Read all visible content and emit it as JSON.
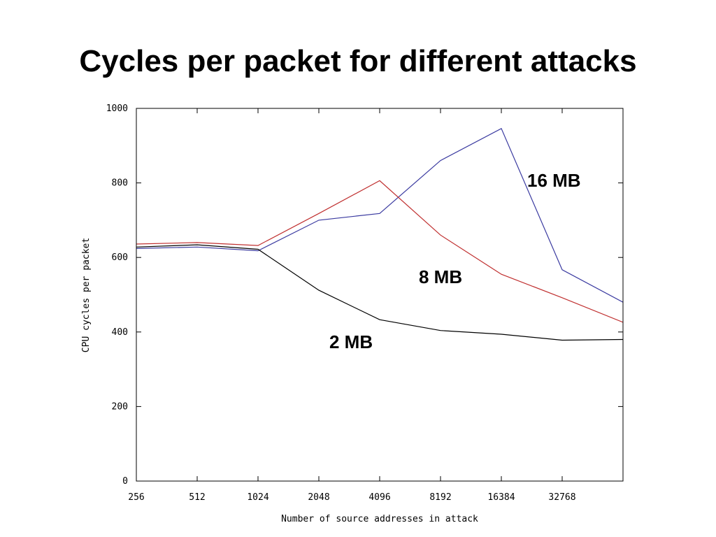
{
  "title": "Cycles per packet for different attacks",
  "chart_data": {
    "type": "line",
    "xlabel": "Number of source addresses in attack",
    "ylabel": "CPU cycles per packet",
    "categories": [
      "256",
      "512",
      "1024",
      "2048",
      "4096",
      "8192",
      "16384",
      "32768",
      ""
    ],
    "ylim": [
      0,
      1000
    ],
    "yticks": [
      "0",
      "200",
      "400",
      "600",
      "800",
      "1000"
    ],
    "grid": false,
    "series": [
      {
        "name": "16 MB",
        "color": "#3a3aa0",
        "values": [
          624,
          628,
          618,
          700,
          718,
          860,
          946,
          567,
          480
        ]
      },
      {
        "name": "8 MB",
        "color": "#c03030",
        "values": [
          636,
          640,
          632,
          718,
          806,
          660,
          555,
          492,
          426
        ]
      },
      {
        "name": "2 MB",
        "color": "#000000",
        "values": [
          628,
          634,
          622,
          512,
          433,
          404,
          394,
          378,
          380
        ]
      }
    ]
  }
}
